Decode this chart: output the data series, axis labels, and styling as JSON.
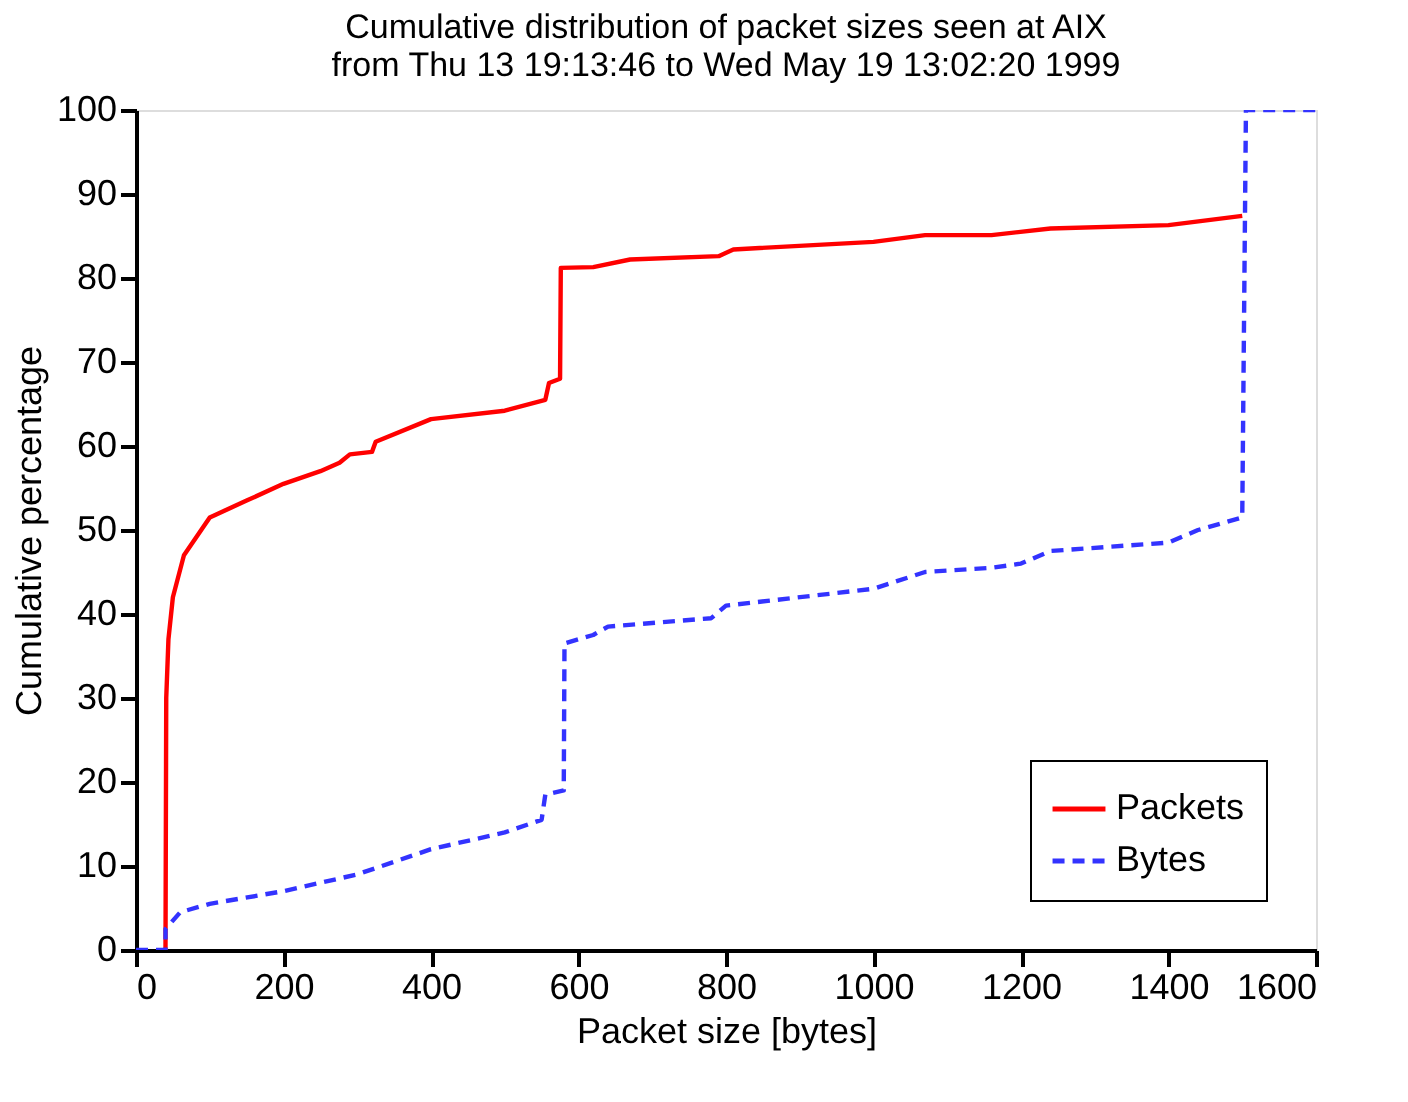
{
  "chart_data": {
    "type": "line",
    "title": "Cumulative distribution of packet sizes seen at AIX",
    "subtitle": "from Thu 13 19:13:46 to Wed May 19 13:02:20 1999",
    "xlabel": "Packet size [bytes]",
    "ylabel": "Cumulative percentage",
    "xlim": [
      0,
      1600
    ],
    "xticks": [
      0,
      200,
      400,
      600,
      800,
      1000,
      1200,
      1400,
      1600
    ],
    "ylim": [
      0,
      100
    ],
    "yticks": [
      0,
      10,
      20,
      30,
      40,
      50,
      60,
      70,
      80,
      90,
      100
    ],
    "grid": false,
    "legend": "bottom right",
    "marker": "none",
    "series": [
      {
        "name": "Packets",
        "color": "#ff0000",
        "line_style": "solid",
        "x": [
          40,
          41,
          44,
          50,
          65,
          100,
          150,
          200,
          250,
          276,
          290,
          320,
          325,
          400,
          500,
          555,
          560,
          575,
          576,
          620,
          670,
          790,
          810,
          1000,
          1070,
          1160,
          1240,
          1400,
          1500
        ],
        "values": [
          0,
          30,
          37,
          42,
          47,
          51.5,
          53.5,
          55.5,
          57,
          58,
          59,
          59.3,
          60.5,
          63.2,
          64.2,
          65.5,
          67.5,
          68,
          81.2,
          81.3,
          82.2,
          82.6,
          83.4,
          84.3,
          85.1,
          85.1,
          85.9,
          86.3,
          87.4
        ]
      },
      {
        "name": "Bytes",
        "color": "#3333ff",
        "line_style": "dashed",
        "x": [
          0,
          40,
          40,
          60,
          100,
          200,
          300,
          350,
          400,
          500,
          550,
          555,
          580,
          581,
          620,
          640,
          780,
          800,
          1000,
          1070,
          1160,
          1200,
          1240,
          1400,
          1440,
          1500,
          1505,
          1600
        ],
        "values": [
          0,
          0,
          2.5,
          4.5,
          5.5,
          7,
          9,
          10.5,
          12,
          14,
          15.5,
          18.5,
          19,
          36.5,
          37.5,
          38.5,
          39.5,
          41,
          43,
          45,
          45.5,
          46,
          47.5,
          48.5,
          50,
          51.5,
          100,
          100
        ]
      }
    ]
  }
}
